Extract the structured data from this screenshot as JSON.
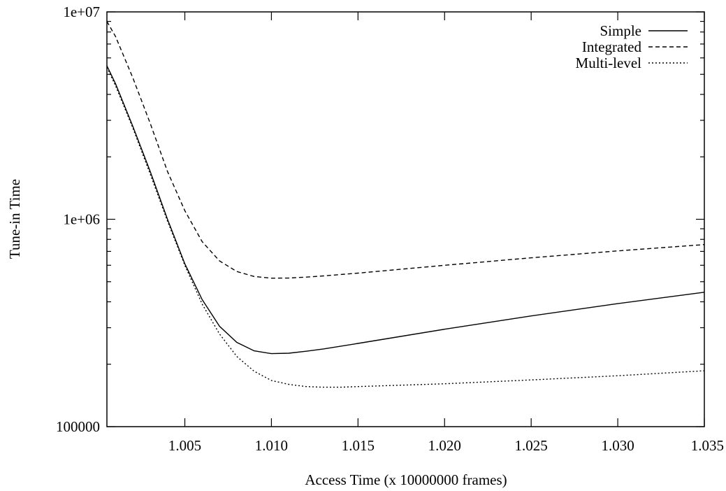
{
  "chart_data": {
    "type": "line",
    "title": "",
    "xlabel": "Access Time (x 10000000 frames)",
    "ylabel": "Tune-in Time",
    "xlim": [
      1.0005,
      1.035
    ],
    "ylim": [
      100000,
      10000000
    ],
    "yscale": "log",
    "grid": false,
    "legend_position": "top-right",
    "x_ticks": [
      1.005,
      1.01,
      1.015,
      1.02,
      1.025,
      1.03,
      1.035
    ],
    "x_tick_labels": [
      "1.005",
      "1.010",
      "1.015",
      "1.020",
      "1.025",
      "1.030",
      "1.035"
    ],
    "y_ticks": [
      100000,
      1000000,
      10000000
    ],
    "y_tick_labels": [
      "100000",
      "1e+06",
      "1e+07"
    ],
    "series": [
      {
        "name": "Simple",
        "dash": "solid",
        "x": [
          1.0005,
          1.001,
          1.002,
          1.003,
          1.004,
          1.005,
          1.006,
          1.007,
          1.008,
          1.009,
          1.01,
          1.011,
          1.012,
          1.013,
          1.015,
          1.02,
          1.025,
          1.03,
          1.035
        ],
        "y": [
          5500000,
          4500000,
          2800000,
          1700000,
          1000000,
          610000,
          410000,
          305000,
          255000,
          232000,
          225000,
          226000,
          231000,
          237000,
          252000,
          295000,
          342000,
          392000,
          445000
        ]
      },
      {
        "name": "Integrated",
        "dash": "dashed",
        "x": [
          1.0005,
          1.001,
          1.002,
          1.003,
          1.004,
          1.005,
          1.006,
          1.007,
          1.008,
          1.009,
          1.01,
          1.011,
          1.012,
          1.013,
          1.015,
          1.02,
          1.025,
          1.03,
          1.035
        ],
        "y": [
          9000000,
          7600000,
          4800000,
          2900000,
          1700000,
          1100000,
          780000,
          630000,
          560000,
          530000,
          520000,
          521000,
          526000,
          533000,
          550000,
          600000,
          652000,
          704000,
          755000
        ]
      },
      {
        "name": "Multi-level",
        "dash": "dotted",
        "x": [
          1.0005,
          1.001,
          1.002,
          1.003,
          1.004,
          1.005,
          1.006,
          1.007,
          1.008,
          1.009,
          1.01,
          1.011,
          1.012,
          1.013,
          1.014,
          1.015,
          1.02,
          1.025,
          1.03,
          1.035
        ],
        "y": [
          5400000,
          4400000,
          2750000,
          1650000,
          980000,
          600000,
          390000,
          280000,
          218000,
          185000,
          167000,
          160000,
          156000,
          155000,
          155000,
          156000,
          161000,
          168000,
          176000,
          186000
        ]
      }
    ]
  }
}
